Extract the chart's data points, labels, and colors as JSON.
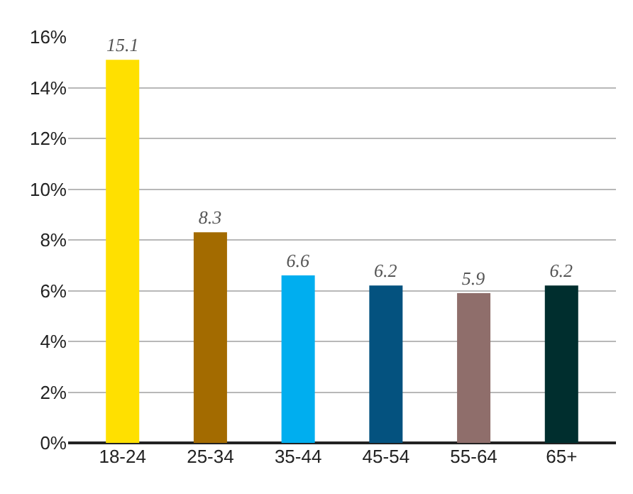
{
  "chart_data": {
    "type": "bar",
    "categories": [
      "18-24",
      "25-34",
      "35-44",
      "45-54",
      "55-64",
      "65+"
    ],
    "values": [
      15.1,
      8.3,
      6.6,
      6.2,
      5.9,
      6.2
    ],
    "colors": [
      "#ffe000",
      "#a36b00",
      "#00aeef",
      "#04527f",
      "#8f6e6b",
      "#002e2e"
    ],
    "data_labels": true,
    "ylim": [
      0,
      16
    ],
    "yticks": [
      {
        "value": 0,
        "label": "0%"
      },
      {
        "value": 2,
        "label": "2%"
      },
      {
        "value": 4,
        "label": "4%"
      },
      {
        "value": 6,
        "label": "6%"
      },
      {
        "value": 8,
        "label": "8%"
      },
      {
        "value": 10,
        "label": "10%"
      },
      {
        "value": 12,
        "label": "12%"
      },
      {
        "value": 14,
        "label": "14%"
      },
      {
        "value": 16,
        "label": "16%"
      }
    ],
    "grid": "y"
  }
}
